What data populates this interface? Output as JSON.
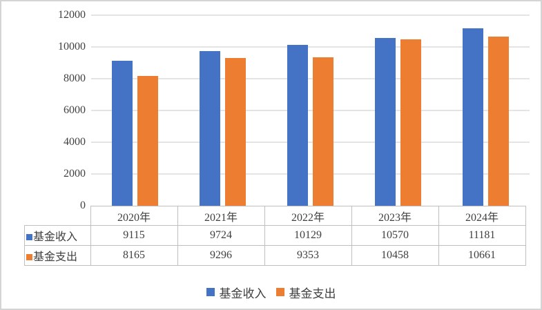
{
  "chart_data": {
    "type": "bar",
    "title": "",
    "xlabel": "",
    "ylabel": "",
    "categories": [
      "2020年",
      "2021年",
      "2022年",
      "2023年",
      "2024年"
    ],
    "series": [
      {
        "key": "fund-income",
        "name": "基金收入",
        "color": "#4472C4",
        "values": [
          9115,
          9724,
          10129,
          10570,
          11181
        ]
      },
      {
        "key": "fund-expense",
        "name": "基金支出",
        "color": "#ED7D31",
        "values": [
          8165,
          9296,
          9353,
          10458,
          10661
        ]
      }
    ],
    "ylim": [
      0,
      12000
    ],
    "yticks": [
      0,
      2000,
      4000,
      6000,
      8000,
      10000,
      12000
    ],
    "grid": true,
    "legend_position": "bottom",
    "data_table_shown": true
  },
  "colors": {
    "series_income": "#4472C4",
    "series_expense": "#ED7D31",
    "gridline": "#e4e4e4",
    "table_border": "#bfbfbf",
    "text": "#3f3f3f",
    "frame_border": "#d4d4d4",
    "background": "#ffffff"
  }
}
